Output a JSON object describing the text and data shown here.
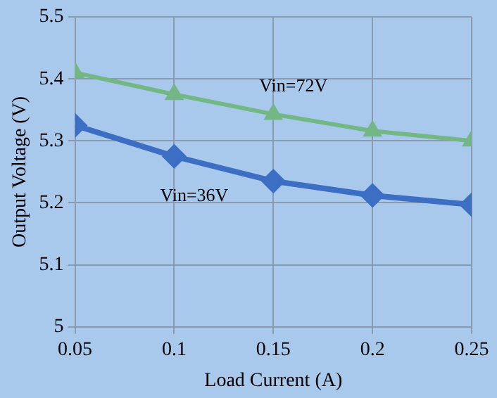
{
  "chart_data": {
    "type": "line",
    "xlabel": "Load Current (A)",
    "ylabel": "Output Voltage (V)",
    "x": [
      0.05,
      0.1,
      0.15,
      0.2,
      0.25
    ],
    "series": [
      {
        "name": "Vin=72V",
        "color": "#72b784",
        "marker": "triangle",
        "values": [
          5.41,
          5.375,
          5.343,
          5.316,
          5.3
        ]
      },
      {
        "name": "Vin=36V",
        "color": "#3c6fc4",
        "marker": "diamond",
        "values": [
          5.325,
          5.275,
          5.235,
          5.212,
          5.197
        ]
      }
    ],
    "xlim": [
      0.05,
      0.25
    ],
    "xticks": [
      0.05,
      0.1,
      0.15,
      0.2,
      0.25
    ],
    "ylim": [
      5,
      5.5
    ],
    "yticks": [
      5,
      5.1,
      5.2,
      5.3,
      5.4,
      5.5
    ],
    "grid": true,
    "legend": false
  }
}
